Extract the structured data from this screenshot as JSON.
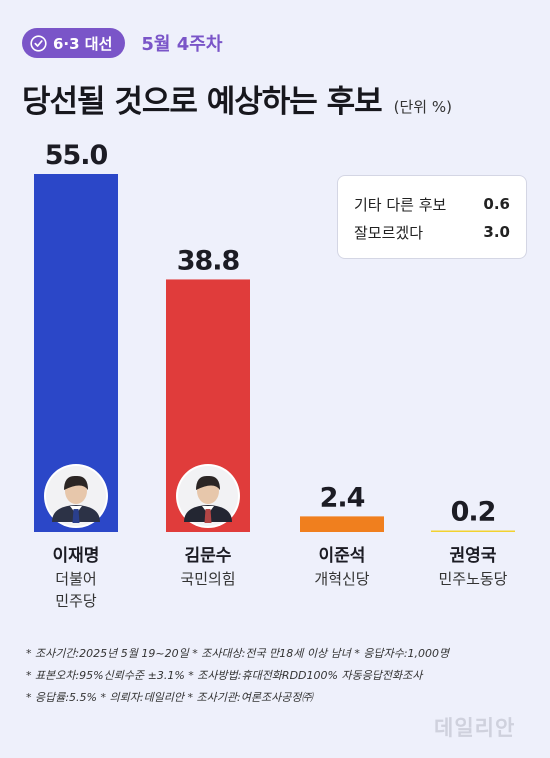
{
  "header": {
    "badge": "6·3 대선",
    "week": "5월 4주차",
    "unit": "(단위 %)"
  },
  "chart_data": {
    "type": "bar",
    "title": "당선될 것으로 예상하는 후보",
    "categories": [
      "이재명",
      "김문수",
      "이준석",
      "권영국"
    ],
    "parties": [
      "더불어\n민주당",
      "국민의힘",
      "개혁신당",
      "민주노동당"
    ],
    "values": [
      55.0,
      38.8,
      2.4,
      0.2
    ],
    "value_labels": [
      "55.0",
      "38.8",
      "2.4",
      "0.2"
    ],
    "colors": [
      "#2b47c8",
      "#e03c3b",
      "#f07f1e",
      "#f2d230"
    ],
    "other": [
      {
        "label": "기타 다른 후보",
        "value": "0.6"
      },
      {
        "label": "잘모르겠다",
        "value": "3.0"
      }
    ]
  },
  "notes": [
    "* 조사기간:2025년 5월 19~20일  * 조사대상:전국 만18세 이상 남녀  * 응답자수:1,000명",
    "* 표본오차:95%신뢰수준 ±3.1%  * 조사방법:휴대전화RDD100% 자동응답전화조사",
    "* 응답률:5.5%  * 의뢰자:데일리안  * 조사기관:여론조사공정㈜"
  ],
  "watermark": "데일리안"
}
